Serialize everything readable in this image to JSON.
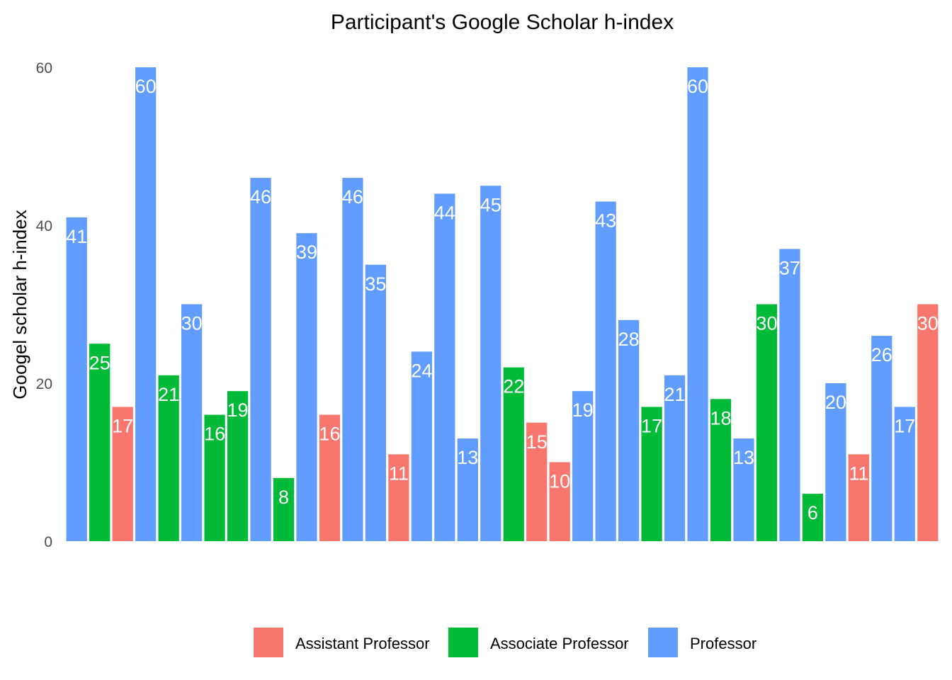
{
  "chart_data": {
    "type": "bar",
    "title": "Participant's Google Scholar h-index",
    "xlabel": "",
    "ylabel": "Googel scholar h-index",
    "ylim": [
      0,
      60
    ],
    "yticks": [
      0,
      20,
      40,
      60
    ],
    "grid": false,
    "legend_position": "bottom",
    "series": [
      {
        "name": "Assistant Professor",
        "color": "#F8766D"
      },
      {
        "name": "Associate Professor",
        "color": "#00BA38"
      },
      {
        "name": "Professor",
        "color": "#619CFF"
      }
    ],
    "bars": [
      {
        "value": 41,
        "group": "Professor"
      },
      {
        "value": 25,
        "group": "Associate Professor"
      },
      {
        "value": 17,
        "group": "Assistant Professor"
      },
      {
        "value": 60,
        "group": "Professor"
      },
      {
        "value": 21,
        "group": "Associate Professor"
      },
      {
        "value": 30,
        "group": "Professor"
      },
      {
        "value": 16,
        "group": "Associate Professor"
      },
      {
        "value": 19,
        "group": "Associate Professor"
      },
      {
        "value": 46,
        "group": "Professor"
      },
      {
        "value": 8,
        "group": "Associate Professor"
      },
      {
        "value": 39,
        "group": "Professor"
      },
      {
        "value": 16,
        "group": "Assistant Professor"
      },
      {
        "value": 46,
        "group": "Professor"
      },
      {
        "value": 35,
        "group": "Professor"
      },
      {
        "value": 11,
        "group": "Assistant Professor"
      },
      {
        "value": 24,
        "group": "Professor"
      },
      {
        "value": 44,
        "group": "Professor"
      },
      {
        "value": 13,
        "group": "Professor"
      },
      {
        "value": 45,
        "group": "Professor"
      },
      {
        "value": 22,
        "group": "Associate Professor"
      },
      {
        "value": 15,
        "group": "Assistant Professor"
      },
      {
        "value": 10,
        "group": "Assistant Professor"
      },
      {
        "value": 19,
        "group": "Professor"
      },
      {
        "value": 43,
        "group": "Professor"
      },
      {
        "value": 28,
        "group": "Professor"
      },
      {
        "value": 17,
        "group": "Associate Professor"
      },
      {
        "value": 21,
        "group": "Professor"
      },
      {
        "value": 60,
        "group": "Professor"
      },
      {
        "value": 18,
        "group": "Associate Professor"
      },
      {
        "value": 13,
        "group": "Professor"
      },
      {
        "value": 30,
        "group": "Associate Professor"
      },
      {
        "value": 37,
        "group": "Professor"
      },
      {
        "value": 6,
        "group": "Associate Professor"
      },
      {
        "value": 20,
        "group": "Professor"
      },
      {
        "value": 11,
        "group": "Assistant Professor"
      },
      {
        "value": 26,
        "group": "Professor"
      },
      {
        "value": 17,
        "group": "Professor"
      },
      {
        "value": 30,
        "group": "Assistant Professor"
      }
    ]
  }
}
